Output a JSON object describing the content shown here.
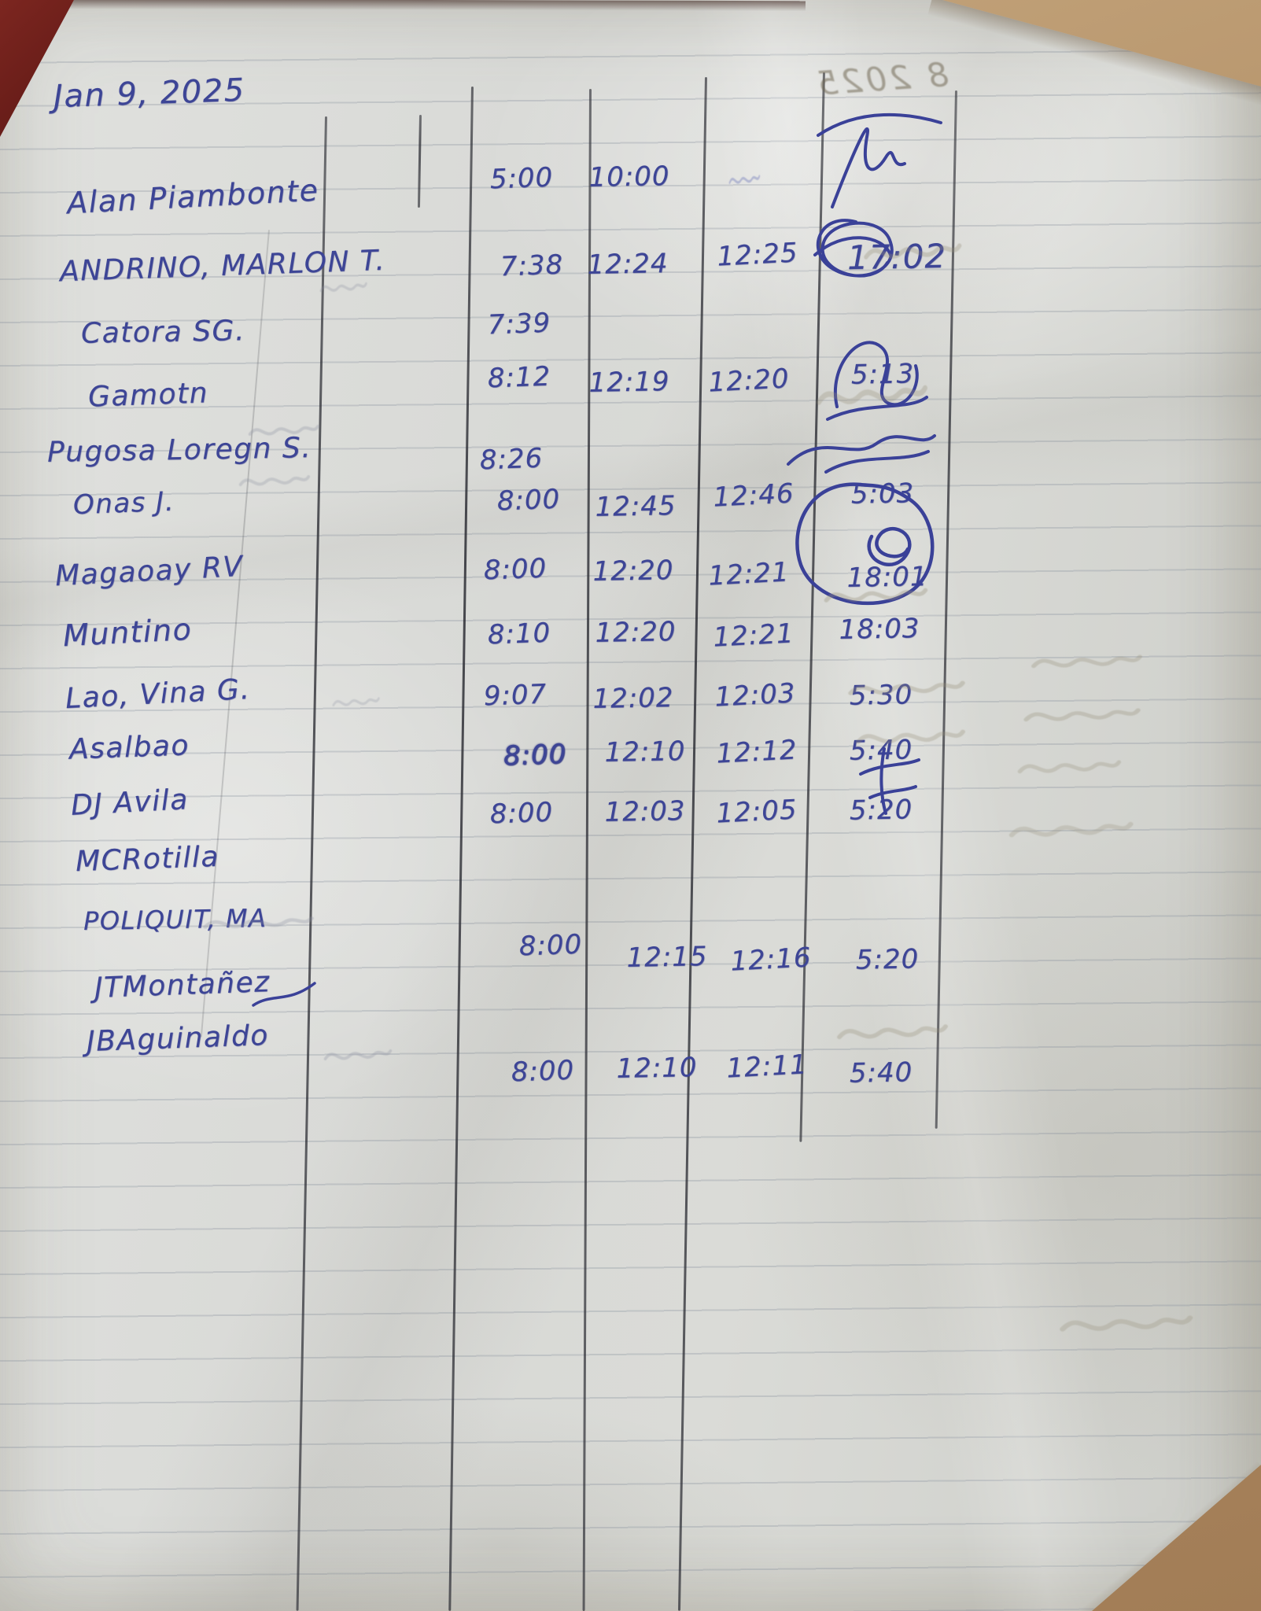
{
  "sheet": {
    "date": "Jan 9, 2025",
    "rows": [
      {
        "name": "Alan Piambonte",
        "times": [
          "5:00",
          "10:00",
          "",
          ""
        ]
      },
      {
        "name": "ANDRINO, MARLON T.",
        "times": [
          "7:38",
          "12:24",
          "12:25",
          "17:02"
        ]
      },
      {
        "name": "Catora SG.",
        "times": [
          "7:39",
          "",
          "",
          ""
        ]
      },
      {
        "name": "Gamotn",
        "times": [
          "8:12",
          "12:19",
          "12:20",
          "5:13"
        ]
      },
      {
        "name": "Pugosa Loregn S.",
        "times": [
          "8:26",
          "",
          "",
          ""
        ]
      },
      {
        "name": "Onas J.",
        "times": [
          "8:00",
          "12:45",
          "12:46",
          "5:03"
        ]
      },
      {
        "name": "Magaoay RV",
        "times": [
          "8:00",
          "12:20",
          "12:21",
          "18:01"
        ]
      },
      {
        "name": "Muntino",
        "times": [
          "8:10",
          "12:20",
          "12:21",
          "18:03"
        ]
      },
      {
        "name": "Lao, Vina G.",
        "times": [
          "9:07",
          "12:02",
          "12:03",
          "5:30"
        ]
      },
      {
        "name": "Asalbao",
        "times": [
          "8:00",
          "12:10",
          "12:12",
          "5:40"
        ]
      },
      {
        "name": "DJ Avila",
        "times": [
          "8:00",
          "12:03",
          "12:05",
          "5:20"
        ]
      },
      {
        "name": "MCRotilla",
        "times": [
          "",
          "",
          "",
          ""
        ]
      },
      {
        "name": "POLIQUIT, MA",
        "times": [
          "8:00",
          "12:15",
          "12:16",
          "5:20"
        ]
      },
      {
        "name": "JTMontañez",
        "times": [
          "",
          "",
          "",
          ""
        ]
      },
      {
        "name": "JBAguinaldo",
        "times": [
          "8:00",
          "12:10",
          "12:11",
          "5:40"
        ]
      }
    ]
  },
  "ghosts": {
    "mirrored_date": "8 2025"
  },
  "colors": {
    "ink_blue": "#3d4596",
    "line_black": "#2c2d34",
    "paper": "#d8d9d6",
    "table_tan": "#b5936b",
    "corner_maroon": "#6e201b"
  },
  "signatures": {
    "count": 7,
    "ink": "#3a4198"
  }
}
